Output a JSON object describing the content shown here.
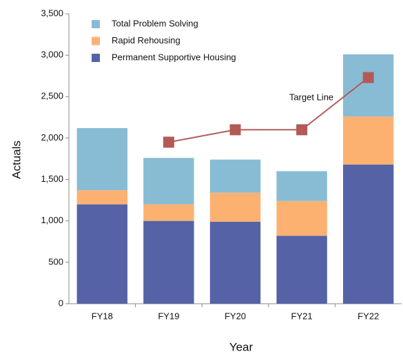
{
  "chart_data": {
    "type": "stacked_bar_line",
    "x_label": "Year",
    "y_label": "Actuals",
    "categories": [
      "FY18",
      "FY19",
      "FY20",
      "FY21",
      "FY22"
    ],
    "series": [
      {
        "name": "Total Problem Solving",
        "color": "#88bcd4",
        "values": [
          750,
          560,
          400,
          360,
          750
        ]
      },
      {
        "name": "Rapid Rehousing",
        "color": "#fdb171",
        "values": [
          170,
          200,
          350,
          420,
          580
        ]
      },
      {
        "name": "Permanent Supportive Housing",
        "color": "#5563a6",
        "values": [
          1200,
          1000,
          990,
          820,
          1680
        ]
      }
    ],
    "line": {
      "name": "Target Line",
      "color": "#b35a57",
      "values": [
        null,
        1950,
        2100,
        2100,
        2730
      ]
    },
    "ylim": [
      0,
      3500
    ],
    "yticks": [
      0,
      500,
      {
        "value": 1000,
        "label": "1,000"
      },
      {
        "value": 1500,
        "label": "1,500"
      },
      {
        "value": 2000,
        "label": "2,000"
      },
      {
        "value": 2500,
        "label": "2,500"
      },
      {
        "value": 3000,
        "label": "3,000"
      },
      {
        "value": 3500,
        "label": "3,500"
      }
    ],
    "legend": "upper left"
  }
}
